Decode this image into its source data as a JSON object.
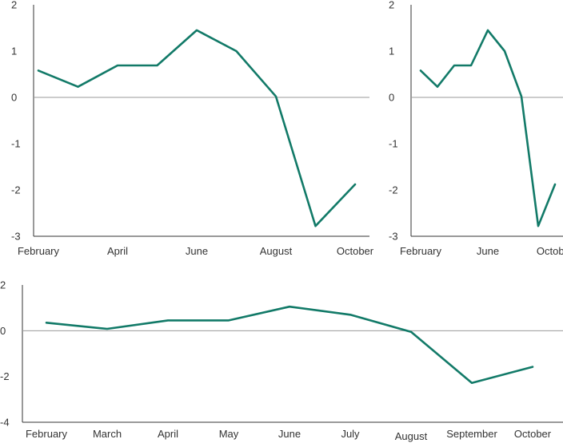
{
  "chart_data": [
    {
      "type": "line",
      "title": "",
      "xlabel": "",
      "ylabel": "",
      "ylim": [
        -3,
        2
      ],
      "yticks": [
        2,
        1,
        0,
        -1,
        -2,
        -3
      ],
      "ytick_labels": [
        "2",
        "1",
        "0",
        "-1",
        "-2",
        "-3"
      ],
      "x": [
        "February",
        "March",
        "April",
        "May",
        "June",
        "July",
        "August",
        "September",
        "October"
      ],
      "xtick_labels": [
        "February",
        "April",
        "June",
        "August",
        "October"
      ],
      "grid": false,
      "zero_line": true,
      "series": [
        {
          "color": "#127a68",
          "values": [
            0.58,
            0.23,
            0.69,
            0.69,
            1.45,
            1.0,
            0.02,
            -2.78,
            -1.88
          ]
        }
      ]
    },
    {
      "type": "line",
      "title": "",
      "xlabel": "",
      "ylabel": "",
      "ylim": [
        -3,
        2
      ],
      "yticks": [
        2,
        1,
        0,
        -1,
        -2,
        -3
      ],
      "ytick_labels": [
        "2",
        "1",
        "0",
        "-1",
        "-2",
        "-3"
      ],
      "x": [
        "February",
        "March",
        "April",
        "May",
        "June",
        "July",
        "August",
        "September",
        "October"
      ],
      "xtick_labels": [
        "February",
        "June",
        "October"
      ],
      "grid": false,
      "zero_line": true,
      "series": [
        {
          "color": "#127a68",
          "values": [
            0.58,
            0.23,
            0.69,
            0.69,
            1.45,
            1.0,
            0.02,
            -2.78,
            -1.88
          ]
        }
      ]
    },
    {
      "type": "line",
      "title": "",
      "xlabel": "",
      "ylabel": "",
      "ylim": [
        -4,
        2
      ],
      "yticks": [
        2,
        0,
        -2,
        -4
      ],
      "ytick_labels": [
        "2",
        "0",
        "-2",
        "-4"
      ],
      "x": [
        "February",
        "March",
        "April",
        "May",
        "June",
        "July",
        "August",
        "September",
        "October"
      ],
      "xtick_labels": [
        "February",
        "March",
        "April",
        "May",
        "June",
        "July",
        "August",
        "September",
        "October"
      ],
      "grid": false,
      "zero_line": true,
      "series": [
        {
          "color": "#127a68",
          "values": [
            0.35,
            0.08,
            0.45,
            0.45,
            1.05,
            0.7,
            -0.05,
            -2.28,
            -1.58
          ]
        }
      ]
    }
  ]
}
